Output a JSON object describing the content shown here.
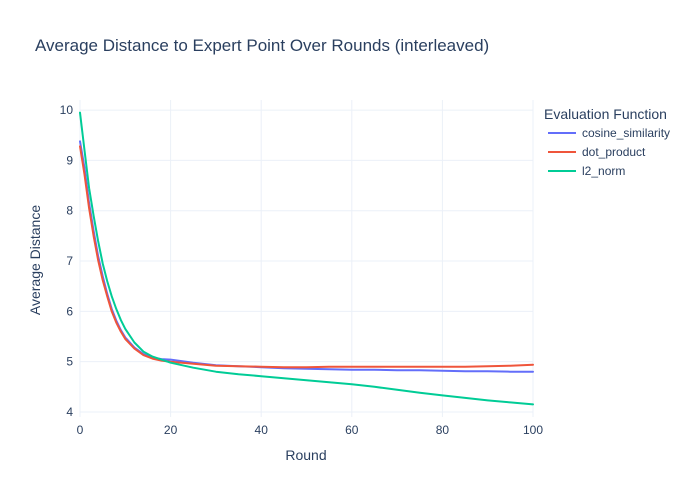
{
  "chart_data": {
    "type": "line",
    "title": "Average Distance to Expert Point Over Rounds (interleaved)",
    "xlabel": "Round",
    "ylabel": "Average Distance",
    "xlim": [
      0,
      100
    ],
    "ylim": [
      3.9,
      10.2
    ],
    "xticks": [
      0,
      20,
      40,
      60,
      80,
      100
    ],
    "yticks": [
      4,
      5,
      6,
      7,
      8,
      9,
      10
    ],
    "grid": true,
    "legend": {
      "title": "Evaluation Function",
      "placement": "right"
    },
    "series": [
      {
        "name": "cosine_similarity",
        "color": "#636efa",
        "x": [
          0,
          1,
          2,
          3,
          4,
          5,
          6,
          7,
          8,
          9,
          10,
          12,
          14,
          16,
          18,
          20,
          25,
          30,
          35,
          40,
          45,
          50,
          55,
          60,
          65,
          70,
          75,
          80,
          85,
          90,
          95,
          100
        ],
        "y": [
          9.38,
          8.85,
          8.15,
          7.6,
          7.1,
          6.7,
          6.35,
          6.05,
          5.82,
          5.63,
          5.48,
          5.28,
          5.15,
          5.08,
          5.05,
          5.04,
          4.98,
          4.93,
          4.91,
          4.89,
          4.87,
          4.86,
          4.85,
          4.84,
          4.84,
          4.83,
          4.83,
          4.82,
          4.81,
          4.81,
          4.8,
          4.8
        ]
      },
      {
        "name": "dot_product",
        "color": "#ef553b",
        "x": [
          0,
          1,
          2,
          3,
          4,
          5,
          6,
          7,
          8,
          9,
          10,
          12,
          14,
          16,
          18,
          20,
          25,
          30,
          35,
          40,
          45,
          50,
          55,
          60,
          65,
          70,
          75,
          80,
          85,
          90,
          95,
          100
        ],
        "y": [
          9.28,
          8.72,
          8.05,
          7.5,
          7.02,
          6.62,
          6.3,
          6.0,
          5.78,
          5.6,
          5.45,
          5.26,
          5.13,
          5.06,
          5.02,
          5.0,
          4.96,
          4.92,
          4.91,
          4.9,
          4.89,
          4.89,
          4.9,
          4.9,
          4.9,
          4.9,
          4.9,
          4.9,
          4.9,
          4.91,
          4.92,
          4.94
        ]
      },
      {
        "name": "l2_norm",
        "color": "#00cc96",
        "x": [
          0,
          1,
          2,
          3,
          4,
          5,
          6,
          7,
          8,
          9,
          10,
          12,
          14,
          16,
          18,
          20,
          25,
          30,
          35,
          40,
          45,
          50,
          55,
          60,
          65,
          70,
          75,
          80,
          85,
          90,
          95,
          100
        ],
        "y": [
          9.95,
          9.2,
          8.45,
          7.9,
          7.4,
          6.95,
          6.6,
          6.3,
          6.05,
          5.83,
          5.65,
          5.38,
          5.2,
          5.1,
          5.04,
          4.98,
          4.88,
          4.8,
          4.75,
          4.71,
          4.67,
          4.63,
          4.59,
          4.55,
          4.5,
          4.44,
          4.38,
          4.33,
          4.28,
          4.23,
          4.19,
          4.15
        ]
      }
    ]
  }
}
